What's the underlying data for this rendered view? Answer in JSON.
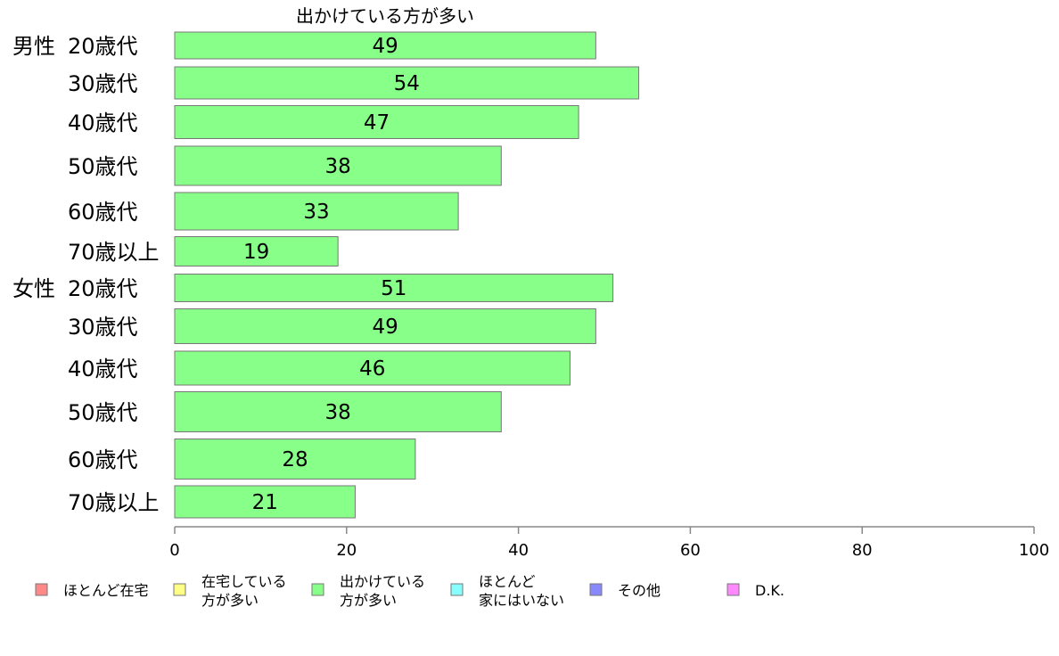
{
  "chart_data": {
    "type": "bar",
    "orientation": "horizontal",
    "title": "",
    "series_title": "出かけている方が多い",
    "categories": [
      {
        "group": "男性",
        "label": "20歳代"
      },
      {
        "group": "",
        "label": "30歳代"
      },
      {
        "group": "",
        "label": "40歳代"
      },
      {
        "group": "",
        "label": "50歳代"
      },
      {
        "group": "",
        "label": "60歳代"
      },
      {
        "group": "",
        "label": "70歳以上"
      },
      {
        "group": "女性",
        "label": "20歳代"
      },
      {
        "group": "",
        "label": "30歳代"
      },
      {
        "group": "",
        "label": "40歳代"
      },
      {
        "group": "",
        "label": "50歳代"
      },
      {
        "group": "",
        "label": "60歳代"
      },
      {
        "group": "",
        "label": "70歳以上"
      }
    ],
    "series": [
      {
        "name": "出かけている方が多い",
        "color": "#88ff88",
        "values": [
          49,
          54,
          47,
          38,
          33,
          19,
          51,
          49,
          46,
          38,
          28,
          21
        ]
      }
    ],
    "xlim": [
      0,
      100
    ],
    "xticks": [
      "0",
      "20",
      "40",
      "60",
      "80",
      "100"
    ],
    "grid": false,
    "legend_position": "bottom",
    "legend": [
      {
        "lines": [
          "ほとんど在宅"
        ],
        "color": "#ff8888"
      },
      {
        "lines": [
          "在宅している",
          "方が多い"
        ],
        "color": "#ffff88"
      },
      {
        "lines": [
          "出かけている",
          "方が多い"
        ],
        "color": "#88ff88"
      },
      {
        "lines": [
          "ほとんど",
          "家にはいない"
        ],
        "color": "#88ffff"
      },
      {
        "lines": [
          "その他"
        ],
        "color": "#8888ff"
      },
      {
        "lines": [
          "D.K."
        ],
        "color": "#ff88ff"
      }
    ]
  }
}
